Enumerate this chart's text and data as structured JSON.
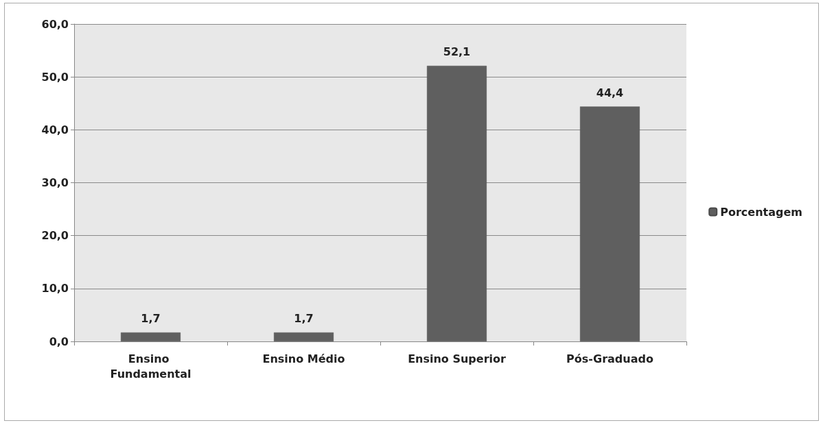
{
  "chart_data": {
    "type": "bar",
    "categories": [
      "Ensino Fundamental",
      "Ensino Médio",
      "Ensino Superior",
      "Pós-Graduado"
    ],
    "series": [
      {
        "name": "Porcentagem",
        "color": "#5f5f5f",
        "values": [
          1.7,
          1.7,
          52.1,
          44.4
        ],
        "value_labels": [
          "1,7",
          "1,7",
          "52,1",
          "44,4"
        ]
      }
    ],
    "ylim": [
      0,
      60
    ],
    "yticks": [
      {
        "value": 0,
        "label": "0,0"
      },
      {
        "value": 10,
        "label": "10,0"
      },
      {
        "value": 20,
        "label": "20,0"
      },
      {
        "value": 30,
        "label": "30,0"
      },
      {
        "value": 40,
        "label": "40,0"
      },
      {
        "value": 50,
        "label": "50,0"
      },
      {
        "value": 60,
        "label": "60,0"
      }
    ],
    "grid": "y",
    "legend": "right"
  }
}
